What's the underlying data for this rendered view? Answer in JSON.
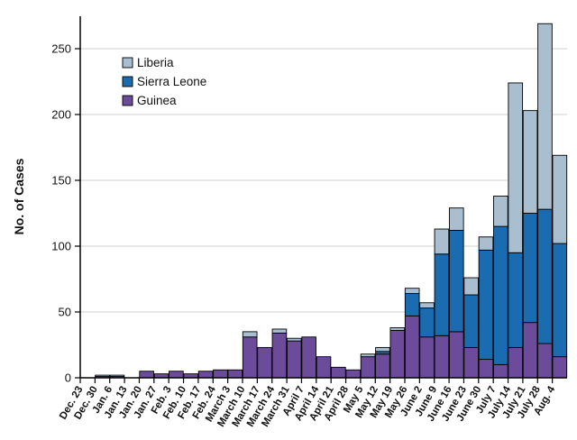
{
  "chart_data": {
    "type": "bar",
    "stacked": true,
    "ylabel": "No. of Cases",
    "xlabel": "",
    "ylim": [
      0,
      275
    ],
    "yticks": [
      0,
      50,
      100,
      150,
      200,
      250
    ],
    "grid": "horizontal",
    "legend": "top-left",
    "tick_labels": [
      "Dec. 23",
      "Dec. 30",
      "Jan. 6",
      "Jan. 13",
      "Jan. 20",
      "Jan. 27",
      "Feb. 3",
      "Feb. 10",
      "Feb. 17",
      "Feb. 24",
      "March 3",
      "March 10",
      "March 17",
      "March 24",
      "March 31",
      "April 7",
      "April 14",
      "April 21",
      "April 28",
      "May 5",
      "May 12",
      "May 19",
      "May 26",
      "June 2",
      "June 9",
      "June 16",
      "June 23",
      "June 30",
      "July 7",
      "July 14",
      "July 21",
      "July 28",
      "Aug. 4"
    ],
    "series": [
      {
        "name": "Guinea",
        "color": "#6b4b9a",
        "values": [
          0,
          1,
          1,
          0,
          5,
          3,
          5,
          3,
          5,
          6,
          6,
          31,
          23,
          34,
          28,
          31,
          16,
          8,
          6,
          16,
          18,
          36,
          47,
          31,
          32,
          35,
          23,
          14,
          10,
          23,
          42,
          26,
          16
        ]
      },
      {
        "name": "Sierra Leone",
        "color": "#1a6bb0",
        "values": [
          0,
          0,
          0,
          0,
          0,
          0,
          0,
          0,
          0,
          0,
          0,
          0,
          0,
          0,
          0,
          0,
          0,
          0,
          0,
          0,
          2,
          0,
          17,
          22,
          62,
          77,
          40,
          83,
          105,
          72,
          83,
          102,
          86
        ]
      },
      {
        "name": "Liberia",
        "color": "#a9bfcf",
        "values": [
          0,
          1,
          1,
          0,
          0,
          0,
          0,
          0,
          0,
          0,
          0,
          4,
          0,
          3,
          2,
          0,
          0,
          0,
          0,
          2,
          3,
          2,
          4,
          4,
          19,
          17,
          13,
          10,
          23,
          129,
          78,
          141,
          67
        ]
      }
    ],
    "legend_order": [
      "Liberia",
      "Sierra Leone",
      "Guinea"
    ]
  }
}
